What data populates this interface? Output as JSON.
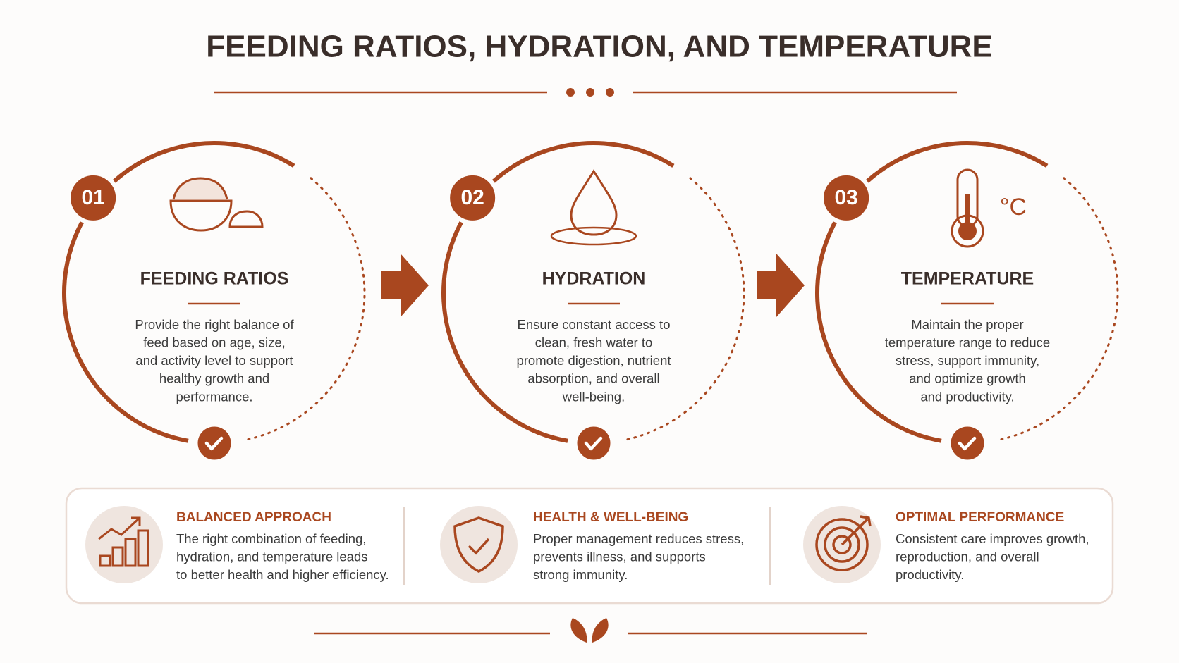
{
  "header": {
    "title": "FEEDING RATIOS, HYDRATION, AND TEMPERATURE"
  },
  "steps": [
    {
      "number": "01",
      "title": "FEEDING RATIOS",
      "description": [
        "Provide the right balance of",
        "feed based on age, size,",
        "and activity level to support",
        "healthy growth and",
        "performance."
      ]
    },
    {
      "number": "02",
      "title": "HYDRATION",
      "description": [
        "Ensure constant access to",
        "clean, fresh water to",
        "promote digestion, nutrient",
        "absorption, and overall",
        "well-being."
      ]
    },
    {
      "number": "03",
      "title": "TEMPERATURE",
      "icon_label": "°C",
      "description": [
        "Maintain the proper",
        "temperature range to reduce",
        "stress, support immunity,",
        "and optimize growth",
        "and productivity."
      ]
    }
  ],
  "benefits": [
    {
      "title": "BALANCED APPROACH",
      "description": [
        "The right combination of feeding,",
        "hydration, and temperature leads",
        "to better health and higher efficiency."
      ]
    },
    {
      "title": "HEALTH & WELL-BEING",
      "description": [
        "Proper management reduces stress,",
        "prevents illness, and supports",
        "strong immunity."
      ]
    },
    {
      "title": "OPTIMAL PERFORMANCE",
      "description": [
        "Consistent care improves growth,",
        "reproduction, and overall",
        "productivity."
      ]
    }
  ]
}
